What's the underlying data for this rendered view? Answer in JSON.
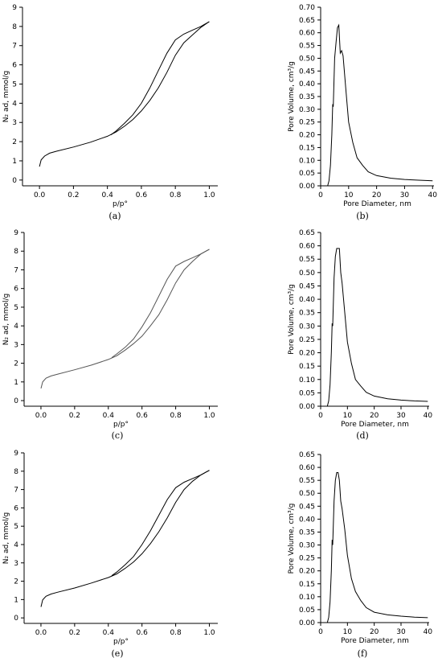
{
  "chart_data": [
    {
      "type": "line",
      "caption": "(a)",
      "xlabel": "p/p°",
      "ylabel": "N₂ ad, mmol/g",
      "xlim": [
        -0.1,
        1.05
      ],
      "ylim": [
        -0.3,
        9
      ],
      "xticks": [
        "0.0",
        "0.2",
        "0.4",
        "0.6",
        "0.8",
        "1.0"
      ],
      "yticks": [
        "0",
        "1",
        "2",
        "3",
        "4",
        "5",
        "6",
        "7",
        "8",
        "9"
      ],
      "adsorption": {
        "x": [
          0.0,
          0.01,
          0.03,
          0.06,
          0.1,
          0.2,
          0.3,
          0.4,
          0.45,
          0.5,
          0.55,
          0.6,
          0.65,
          0.7,
          0.75,
          0.8,
          0.85,
          0.9,
          0.95,
          1.0
        ],
        "y": [
          0.7,
          1.05,
          1.25,
          1.4,
          1.5,
          1.72,
          1.97,
          2.28,
          2.5,
          2.8,
          3.15,
          3.6,
          4.15,
          4.8,
          5.6,
          6.5,
          7.15,
          7.55,
          7.95,
          8.25
        ]
      },
      "desorption": {
        "x": [
          1.0,
          0.95,
          0.9,
          0.85,
          0.8,
          0.75,
          0.7,
          0.65,
          0.6,
          0.55,
          0.5,
          0.45,
          0.42
        ],
        "y": [
          8.25,
          8.0,
          7.8,
          7.6,
          7.3,
          6.6,
          5.7,
          4.8,
          4.0,
          3.4,
          2.95,
          2.55,
          2.35
        ]
      }
    },
    {
      "type": "line",
      "caption": "(b)",
      "xlabel": "Pore Diameter, nm",
      "ylabel": "Pore Volume, cm³/g",
      "xlim": [
        0,
        40.5
      ],
      "ylim": [
        0,
        0.7
      ],
      "xticks": [
        "0",
        "10",
        "20",
        "30",
        "40"
      ],
      "yticks": [
        "0.00",
        "0.05",
        "0.10",
        "0.15",
        "0.20",
        "0.25",
        "0.30",
        "0.35",
        "0.40",
        "0.45",
        "0.50",
        "0.55",
        "0.60",
        "0.65",
        "0.70"
      ],
      "x": [
        2.5,
        3.0,
        3.5,
        4.0,
        4.3,
        4.5,
        5.0,
        5.5,
        6.0,
        6.5,
        7.0,
        7.5,
        8.0,
        9.0,
        10.0,
        11.5,
        13.0,
        15.0,
        17.0,
        20.0,
        25.0,
        30.0,
        35.0,
        40.0
      ],
      "y": [
        0.0,
        0.02,
        0.08,
        0.2,
        0.32,
        0.31,
        0.5,
        0.56,
        0.62,
        0.63,
        0.52,
        0.53,
        0.51,
        0.38,
        0.25,
        0.17,
        0.11,
        0.08,
        0.055,
        0.04,
        0.03,
        0.025,
        0.022,
        0.02
      ]
    },
    {
      "type": "line",
      "caption": "(c)",
      "xlabel": "p/p°",
      "ylabel": "N₂ ad, mmol/g",
      "xlim": [
        -0.1,
        1.05
      ],
      "ylim": [
        -0.3,
        9
      ],
      "xticks": [
        "0.0",
        "0.2",
        "0.4",
        "0.6",
        "0.8",
        "1.0"
      ],
      "yticks": [
        "0",
        "1",
        "2",
        "3",
        "4",
        "5",
        "6",
        "7",
        "8",
        "9"
      ],
      "adsorption": {
        "x": [
          0.0,
          0.01,
          0.03,
          0.06,
          0.1,
          0.2,
          0.3,
          0.4,
          0.45,
          0.5,
          0.55,
          0.6,
          0.65,
          0.7,
          0.75,
          0.8,
          0.85,
          0.9,
          0.95,
          1.0
        ],
        "y": [
          0.65,
          1.0,
          1.2,
          1.32,
          1.42,
          1.65,
          1.9,
          2.2,
          2.4,
          2.7,
          3.05,
          3.45,
          4.0,
          4.6,
          5.4,
          6.3,
          7.0,
          7.45,
          7.85,
          8.1
        ]
      },
      "desorption": {
        "x": [
          1.0,
          0.95,
          0.9,
          0.85,
          0.8,
          0.75,
          0.7,
          0.65,
          0.6,
          0.55,
          0.5,
          0.45,
          0.42
        ],
        "y": [
          8.1,
          7.85,
          7.65,
          7.45,
          7.2,
          6.5,
          5.6,
          4.7,
          3.95,
          3.3,
          2.85,
          2.5,
          2.3
        ]
      }
    },
    {
      "type": "line",
      "caption": "(d)",
      "xlabel": "Pore Diameter, nm",
      "ylabel": "Pore Volume, cm³/g",
      "xlim": [
        0,
        40.5
      ],
      "ylim": [
        0,
        0.65
      ],
      "xticks": [
        "0",
        "10",
        "20",
        "30",
        "40"
      ],
      "yticks": [
        "0.00",
        "0.05",
        "0.10",
        "0.15",
        "0.20",
        "0.25",
        "0.30",
        "0.35",
        "0.40",
        "0.45",
        "0.50",
        "0.55",
        "0.60",
        "0.65"
      ],
      "x": [
        2.5,
        3.0,
        3.5,
        4.0,
        4.3,
        4.5,
        5.0,
        5.5,
        6.0,
        6.5,
        7.0,
        7.5,
        8.0,
        9.0,
        10.0,
        11.5,
        13.0,
        15.0,
        17.0,
        20.0,
        25.0,
        30.0,
        35.0,
        40.0
      ],
      "y": [
        0.0,
        0.02,
        0.08,
        0.2,
        0.31,
        0.3,
        0.48,
        0.56,
        0.59,
        0.59,
        0.59,
        0.5,
        0.46,
        0.35,
        0.24,
        0.16,
        0.1,
        0.075,
        0.052,
        0.038,
        0.028,
        0.023,
        0.02,
        0.018
      ]
    },
    {
      "type": "line",
      "caption": "(e)",
      "xlabel": "p/p°",
      "ylabel": "N₂ ad, mmol/g",
      "xlim": [
        -0.1,
        1.05
      ],
      "ylim": [
        -0.3,
        9
      ],
      "xticks": [
        "0.0",
        "0.2",
        "0.4",
        "0.6",
        "0.8",
        "1.0"
      ],
      "yticks": [
        "0",
        "1",
        "2",
        "3",
        "4",
        "5",
        "6",
        "7",
        "8",
        "9"
      ],
      "adsorption": {
        "x": [
          0.0,
          0.01,
          0.03,
          0.06,
          0.1,
          0.2,
          0.3,
          0.4,
          0.45,
          0.5,
          0.55,
          0.6,
          0.65,
          0.7,
          0.75,
          0.8,
          0.85,
          0.9,
          0.95,
          1.0
        ],
        "y": [
          0.6,
          0.98,
          1.18,
          1.3,
          1.4,
          1.63,
          1.9,
          2.2,
          2.4,
          2.7,
          3.05,
          3.5,
          4.05,
          4.7,
          5.45,
          6.3,
          7.0,
          7.45,
          7.8,
          8.05
        ]
      },
      "desorption": {
        "x": [
          1.0,
          0.95,
          0.9,
          0.85,
          0.8,
          0.75,
          0.7,
          0.65,
          0.6,
          0.55,
          0.5,
          0.45,
          0.42
        ],
        "y": [
          8.05,
          7.8,
          7.6,
          7.4,
          7.1,
          6.45,
          5.6,
          4.75,
          4.0,
          3.35,
          2.9,
          2.5,
          2.3
        ]
      }
    },
    {
      "type": "line",
      "caption": "(f)",
      "xlabel": "Pore Diameter, nm",
      "ylabel": "Pore Volume, cm³/g",
      "xlim": [
        0,
        40.5
      ],
      "ylim": [
        0,
        0.65
      ],
      "xticks": [
        "0",
        "10",
        "20",
        "30",
        "40"
      ],
      "yticks": [
        "0.00",
        "0.05",
        "0.10",
        "0.15",
        "0.20",
        "0.25",
        "0.30",
        "0.35",
        "0.40",
        "0.45",
        "0.50",
        "0.55",
        "0.60",
        "0.65"
      ],
      "x": [
        2.5,
        3.0,
        3.5,
        4.0,
        4.3,
        4.5,
        5.0,
        5.5,
        6.0,
        6.5,
        7.0,
        7.5,
        8.0,
        9.0,
        10.0,
        11.5,
        13.0,
        15.0,
        17.0,
        20.0,
        25.0,
        30.0,
        35.0,
        40.0
      ],
      "y": [
        0.0,
        0.02,
        0.08,
        0.2,
        0.32,
        0.3,
        0.47,
        0.55,
        0.58,
        0.58,
        0.55,
        0.47,
        0.44,
        0.36,
        0.26,
        0.17,
        0.12,
        0.085,
        0.058,
        0.04,
        0.03,
        0.025,
        0.021,
        0.019
      ]
    }
  ]
}
